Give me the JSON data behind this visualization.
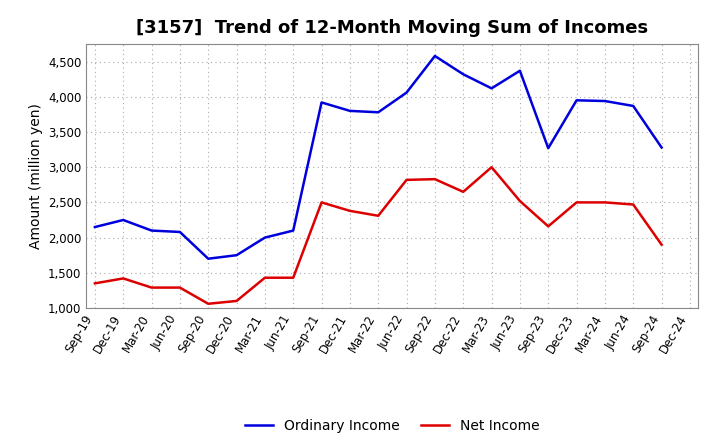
{
  "title": "[3157]  Trend of 12-Month Moving Sum of Incomes",
  "ylabel": "Amount (million yen)",
  "ylim": [
    1000,
    4750
  ],
  "yticks": [
    1000,
    1500,
    2000,
    2500,
    3000,
    3500,
    4000,
    4500
  ],
  "x_labels": [
    "Sep-19",
    "Dec-19",
    "Mar-20",
    "Jun-20",
    "Sep-20",
    "Dec-20",
    "Mar-21",
    "Jun-21",
    "Sep-21",
    "Dec-21",
    "Mar-22",
    "Jun-22",
    "Sep-22",
    "Dec-22",
    "Mar-23",
    "Jun-23",
    "Sep-23",
    "Dec-23",
    "Mar-24",
    "Jun-24",
    "Sep-24",
    "Dec-24"
  ],
  "ordinary_income": [
    2150,
    2250,
    2100,
    2080,
    1700,
    1750,
    2000,
    2100,
    3920,
    3800,
    3780,
    4060,
    4580,
    4320,
    4120,
    4370,
    3270,
    3950,
    3940,
    3870,
    3280,
    null
  ],
  "net_income": [
    1350,
    1420,
    1290,
    1290,
    1060,
    1100,
    1430,
    1430,
    2500,
    2380,
    2310,
    2820,
    2830,
    2650,
    3000,
    2520,
    2160,
    2500,
    2500,
    2470,
    1900,
    null
  ],
  "ordinary_color": "#0000dd",
  "net_color": "#dd0000",
  "background_color": "#ffffff",
  "grid_color": "#aaaaaa",
  "title_fontsize": 13,
  "label_fontsize": 10,
  "tick_fontsize": 8.5,
  "legend_fontsize": 10
}
